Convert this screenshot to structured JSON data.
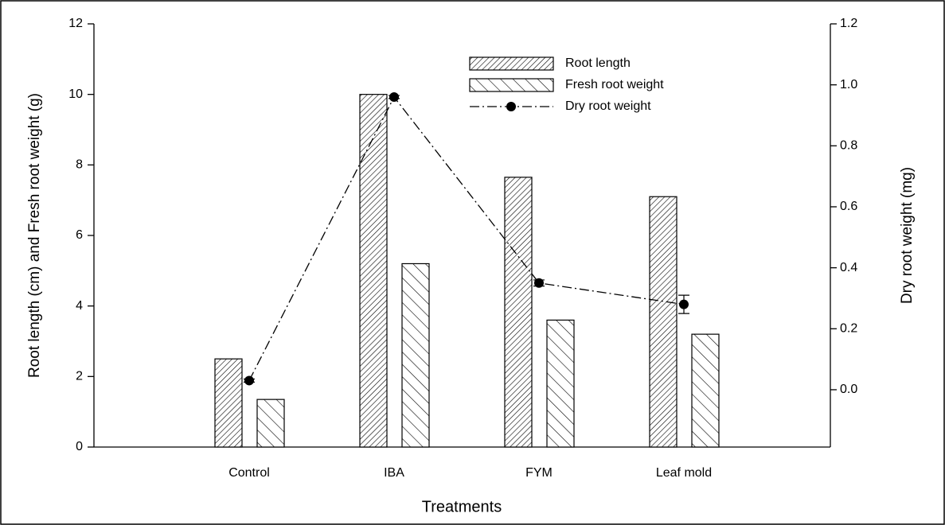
{
  "chart_data": {
    "type": "bar",
    "x_label": "Treatments",
    "y_label": "Root length (cm) and Fresh root weight (g)",
    "y2_label": "Dry root weight (mg)",
    "categories": [
      "Control",
      "IBA",
      "FYM",
      "Leaf mold"
    ],
    "series": [
      {
        "name": "Root length",
        "type": "bar",
        "pattern": "dense-forward-hatch",
        "color": "#000000",
        "values": [
          2.5,
          10.0,
          7.65,
          7.1
        ]
      },
      {
        "name": "Fresh root weight",
        "type": "bar",
        "pattern": "sparse-back-hatch",
        "color": "#000000",
        "values": [
          1.35,
          5.2,
          3.6,
          3.2
        ]
      },
      {
        "name": "Dry root weight",
        "type": "line",
        "axis": "y2",
        "color": "#000000",
        "values": [
          0.03,
          0.96,
          0.35,
          0.28
        ],
        "errors": [
          0.005,
          0.005,
          0.01,
          0.03
        ]
      }
    ],
    "ylim": [
      0,
      12
    ],
    "yticks": [
      0,
      2,
      4,
      6,
      8,
      10,
      12
    ],
    "y2lim": [
      -0.188,
      1.2
    ],
    "y2ticks": [
      {
        "value": 0,
        "label": "0.0"
      },
      0.2,
      0.4,
      0.6,
      0.8,
      {
        "value": 1,
        "label": "1.0"
      },
      1.2
    ],
    "legend": "upper center"
  }
}
